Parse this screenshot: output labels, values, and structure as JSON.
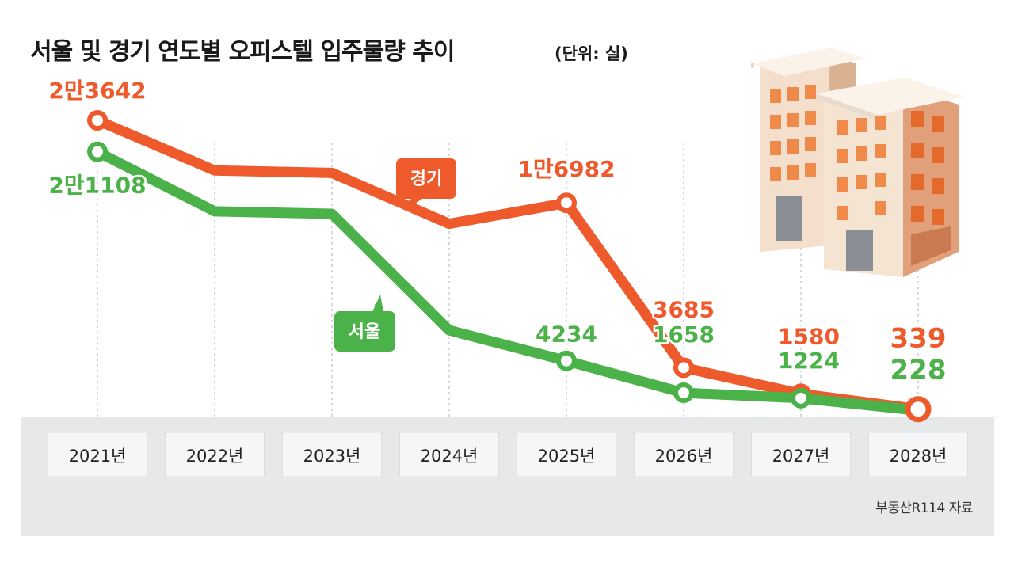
{
  "title": "서울 및 경기 연도별 오피스텔 입주물량 추이",
  "unit": "(단위: 실)",
  "source": "부동산R114 자료",
  "colors": {
    "gyeonggi": "#ee5a2c",
    "seoul": "#4bb24a",
    "band": "#e6e8ea"
  },
  "chart_data": {
    "type": "line",
    "title": "서울 및 경기 연도별 오피스텔 입주물량 추이",
    "unit": "(단위: 실)",
    "categories": [
      "2021년",
      "2022년",
      "2023년",
      "2024년",
      "2025년",
      "2026년",
      "2027년",
      "2028년"
    ],
    "series": [
      {
        "name": "경기",
        "color": "#ee5a2c",
        "values": [
          23642,
          19600,
          19400,
          15300,
          16982,
          3685,
          1580,
          339
        ],
        "labels": [
          "2만3642",
          null,
          null,
          null,
          "1만6982",
          "3685",
          "1580",
          "339"
        ]
      },
      {
        "name": "서울",
        "color": "#4bb24a",
        "values": [
          21108,
          16300,
          16100,
          6700,
          4234,
          1658,
          1224,
          228
        ],
        "labels": [
          "2만1108",
          null,
          null,
          null,
          "4234",
          "1658",
          "1224",
          "228"
        ]
      }
    ],
    "ylim": [
      0,
      24000
    ],
    "grid": "dotted vertical lines at each year",
    "legend": "callout labels on lines"
  }
}
